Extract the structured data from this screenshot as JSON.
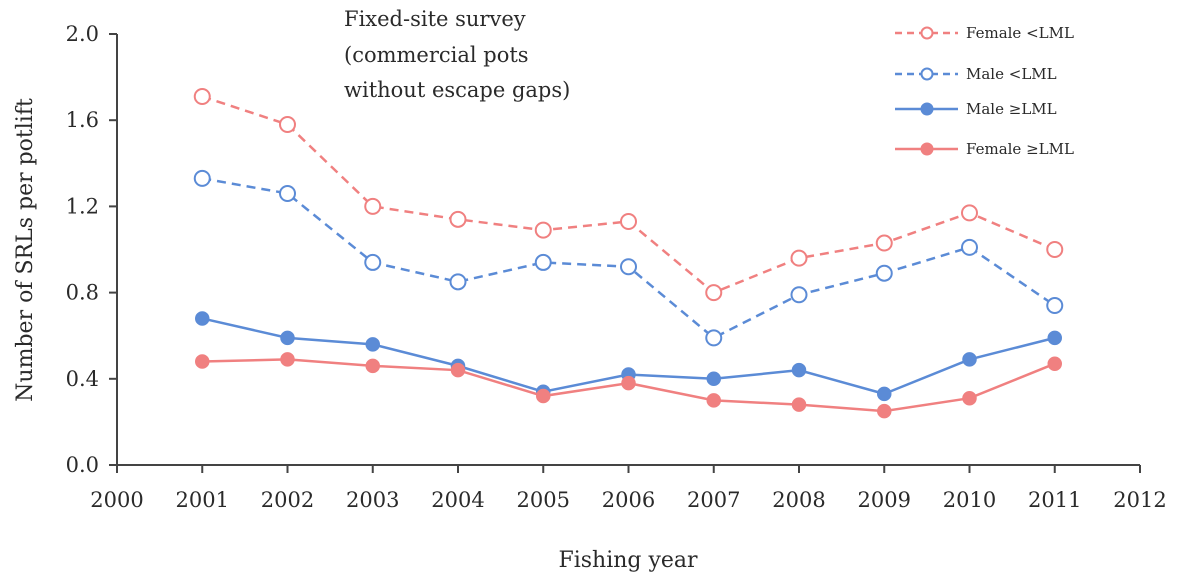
{
  "chart_data": {
    "type": "line",
    "annotation": [
      "Fixed-site survey",
      "(commercial pots",
      "without  escape gaps)"
    ],
    "xlabel": "Fishing year",
    "ylabel": "Number of SRLs per potlift",
    "xlim": [
      2000,
      2012
    ],
    "ylim": [
      0,
      2.0
    ],
    "x_ticks": [
      "2000",
      "2001",
      "2002",
      "2003",
      "2004",
      "2005",
      "2006",
      "2007",
      "2008",
      "2009",
      "2010",
      "2011",
      "2012"
    ],
    "y_ticks": [
      "0.0",
      "0.4",
      "0.8",
      "1.2",
      "1.6",
      "2.0"
    ],
    "x": [
      2001,
      2002,
      2003,
      2004,
      2005,
      2006,
      2007,
      2008,
      2009,
      2010,
      2011
    ],
    "legend_position": "top-right",
    "grid": false,
    "series": [
      {
        "name": "Female <LML",
        "color": "#f08080",
        "dashed": true,
        "marker": "open-circle",
        "values": [
          1.71,
          1.58,
          1.2,
          1.14,
          1.09,
          1.13,
          0.8,
          0.96,
          1.03,
          1.17,
          1.0
        ]
      },
      {
        "name": "Male <LML",
        "color": "#5b8bd6",
        "dashed": true,
        "marker": "open-circle",
        "values": [
          1.33,
          1.26,
          0.94,
          0.85,
          0.94,
          0.92,
          0.59,
          0.79,
          0.89,
          1.01,
          0.74
        ]
      },
      {
        "name": "Male ≥LML",
        "color": "#5b8bd6",
        "dashed": false,
        "marker": "filled-circle",
        "values": [
          0.68,
          0.59,
          0.56,
          0.46,
          0.34,
          0.42,
          0.4,
          0.44,
          0.33,
          0.49,
          0.59
        ]
      },
      {
        "name": "Female ≥LML",
        "color": "#f08080",
        "dashed": false,
        "marker": "filled-circle",
        "values": [
          0.48,
          0.49,
          0.46,
          0.44,
          0.32,
          0.38,
          0.3,
          0.28,
          0.25,
          0.31,
          0.47
        ]
      }
    ]
  }
}
